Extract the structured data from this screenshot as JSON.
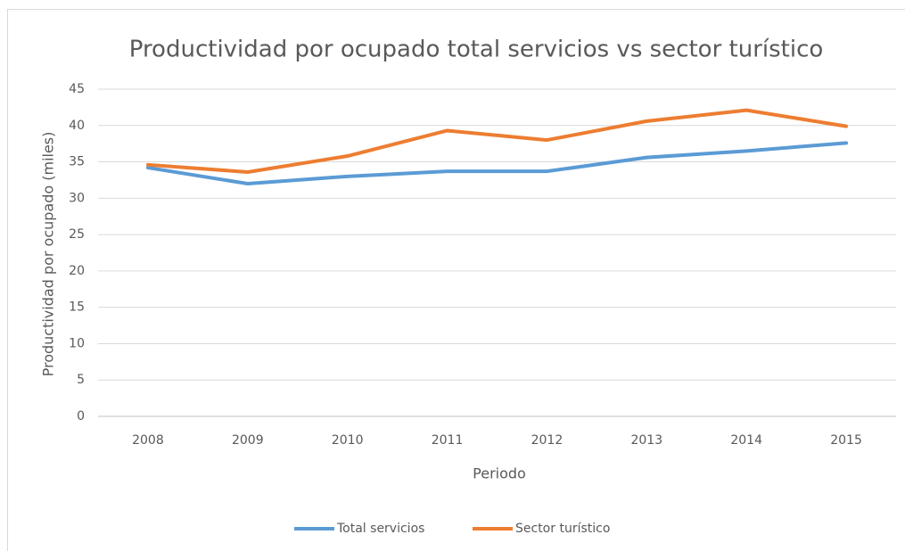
{
  "chart_data": {
    "type": "line",
    "title": "Productividad por ocupado total servicios vs sector turístico",
    "x_label": "Periodo",
    "y_label": "Productividad por ocupado (miles)",
    "categories": [
      "2008",
      "2009",
      "2010",
      "2011",
      "2012",
      "2013",
      "2014",
      "2015"
    ],
    "series": [
      {
        "name": "Total servicios",
        "color": "#5b9bd5",
        "values": [
          34.2,
          32,
          33,
          33.7,
          33.7,
          35.6,
          36.5,
          37.6
        ]
      },
      {
        "name": "Sector turístico",
        "color": "#ed7d31",
        "values": [
          34.6,
          33.6,
          35.8,
          39.3,
          38,
          40.6,
          42.1,
          39.9
        ]
      }
    ],
    "ylim": [
      0,
      45
    ],
    "yticks": [
      0,
      5,
      10,
      15,
      20,
      25,
      30,
      35,
      40,
      45
    ],
    "grid": true,
    "legend": "bottom"
  }
}
